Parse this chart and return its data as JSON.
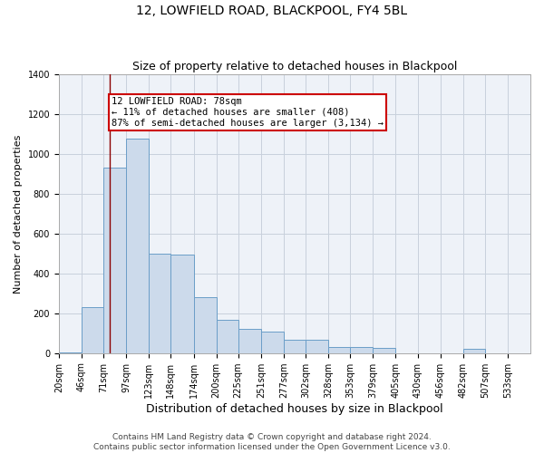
{
  "title": "12, LOWFIELD ROAD, BLACKPOOL, FY4 5BL",
  "subtitle": "Size of property relative to detached houses in Blackpool",
  "xlabel": "Distribution of detached houses by size in Blackpool",
  "ylabel": "Number of detached properties",
  "bar_values": [
    5,
    230,
    930,
    1075,
    500,
    495,
    280,
    165,
    120,
    110,
    65,
    65,
    30,
    30,
    25,
    0,
    0,
    0,
    20,
    0
  ],
  "bar_left_edges": [
    20,
    46,
    71,
    97,
    123,
    148,
    174,
    200,
    225,
    251,
    277,
    302,
    328,
    353,
    379,
    405,
    430,
    456,
    482,
    507
  ],
  "bar_widths": [
    26,
    25,
    26,
    26,
    25,
    26,
    26,
    25,
    26,
    26,
    25,
    26,
    25,
    26,
    26,
    25,
    26,
    26,
    25,
    26
  ],
  "bar_facecolor": "#ccdaeb",
  "bar_edgecolor": "#6b9ec8",
  "grid_color": "#c8d0dc",
  "bg_color": "#eef2f8",
  "property_line_x": 78,
  "property_line_color": "#8b0000",
  "annotation_text": "12 LOWFIELD ROAD: 78sqm\n← 11% of detached houses are smaller (408)\n87% of semi-detached houses are larger (3,134) →",
  "annotation_box_color": "#cc0000",
  "ylim": [
    0,
    1400
  ],
  "yticks": [
    0,
    200,
    400,
    600,
    800,
    1000,
    1200,
    1400
  ],
  "xtick_labels": [
    "20sqm",
    "46sqm",
    "71sqm",
    "97sqm",
    "123sqm",
    "148sqm",
    "174sqm",
    "200sqm",
    "225sqm",
    "251sqm",
    "277sqm",
    "302sqm",
    "328sqm",
    "353sqm",
    "379sqm",
    "405sqm",
    "430sqm",
    "456sqm",
    "482sqm",
    "507sqm",
    "533sqm"
  ],
  "footer_text": "Contains HM Land Registry data © Crown copyright and database right 2024.\nContains public sector information licensed under the Open Government Licence v3.0.",
  "title_fontsize": 10,
  "subtitle_fontsize": 9,
  "xlabel_fontsize": 9,
  "ylabel_fontsize": 8,
  "tick_fontsize": 7,
  "footer_fontsize": 6.5,
  "annotation_fontsize": 7.5
}
